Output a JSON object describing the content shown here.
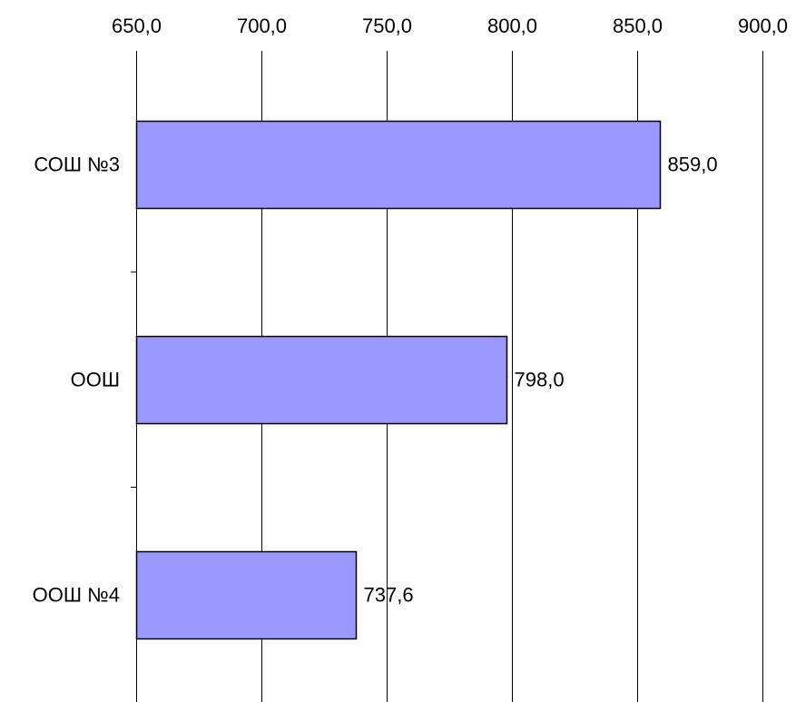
{
  "chart_data": {
    "type": "bar",
    "orientation": "horizontal",
    "categories": [
      "СОШ №3",
      "ООШ",
      "ООШ №4"
    ],
    "values": [
      859.0,
      798.0,
      737.6
    ],
    "value_labels": [
      "859,0",
      "798,0",
      "737,6"
    ],
    "x_ticks": [
      650,
      700,
      750,
      800,
      850,
      900
    ],
    "x_tick_labels": [
      "650,0",
      "700,0",
      "750,0",
      "800,0",
      "850,0",
      "900,0"
    ],
    "xlim": [
      650,
      900
    ],
    "x_axis_position": "top",
    "grid": true,
    "bar_color": "#9999ff",
    "bar_edge_color": "#000000"
  }
}
